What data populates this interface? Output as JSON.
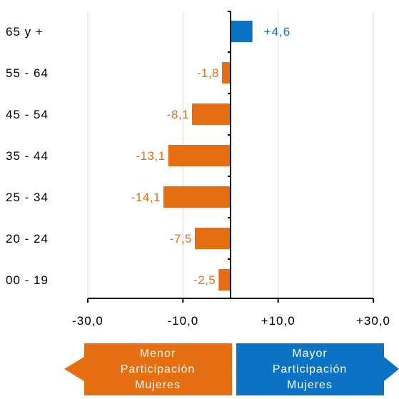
{
  "chart_data": {
    "type": "bar",
    "orientation": "horizontal",
    "categories": [
      "65 y +",
      "55 - 64",
      "45 - 54",
      "35 - 44",
      "25 - 34",
      "20 - 24",
      "00 - 19"
    ],
    "values": [
      4.6,
      -1.8,
      -8.1,
      -13.1,
      -14.1,
      -7.5,
      -2.5
    ],
    "data_labels": [
      "+4,6",
      "-1,8",
      "-8,1",
      "-13,1",
      "-14,1",
      "-7,5",
      "-2,5"
    ],
    "xlim": [
      -30,
      30
    ],
    "x_ticks": [
      -30,
      -10,
      10,
      30
    ],
    "x_tick_labels": [
      "-30,0",
      "-10,0",
      "+10,0",
      "+30,0"
    ],
    "grid": true,
    "colors": {
      "positive": "#0B72C4",
      "negative": "#E56E12",
      "axis": "#000000",
      "grid": "#d9d9d9"
    }
  },
  "legend": {
    "left_label": "Menor Participación Mujeres",
    "right_label": "Mayor Participación Mujeres",
    "left_color": "#E56E12",
    "right_color": "#0B72C4"
  }
}
